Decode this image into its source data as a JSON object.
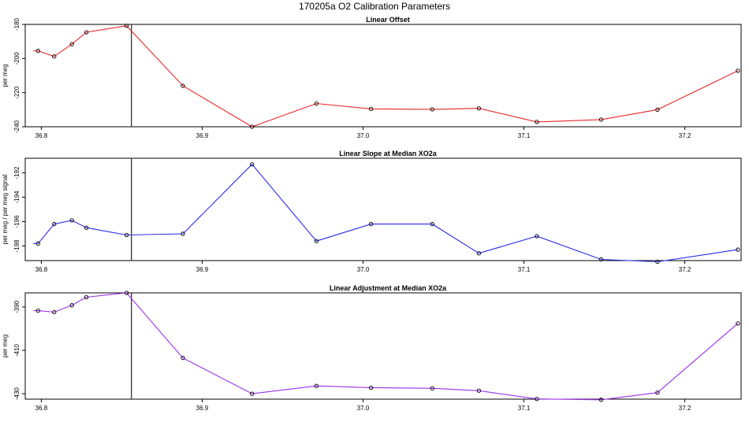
{
  "title": "170205a   O2 Calibration Parameters",
  "chart_data": [
    {
      "type": "line",
      "title": "Linear Offset",
      "ylabel": "per meg",
      "color": "#e8272a",
      "xlim": [
        36.79,
        37.235
      ],
      "ylim": [
        -240,
        -180
      ],
      "xticks": [
        "36.8",
        "36.9",
        "37.0",
        "37.1",
        "37.2"
      ],
      "yticks": [
        "-180",
        "-200",
        "-220",
        "-240"
      ],
      "vline": 36.856,
      "x": [
        36.798,
        36.808,
        36.819,
        36.828,
        36.853,
        36.888,
        36.931,
        36.971,
        37.005,
        37.043,
        37.072,
        37.108,
        37.148,
        37.183,
        37.233
      ],
      "y": [
        -195.5,
        -198.8,
        -191.6,
        -184.6,
        -180.8,
        -216.0,
        -240.0,
        -226.4,
        -229.5,
        -229.8,
        -229.2,
        -237.2,
        -235.8,
        -230.0,
        -207.2
      ]
    },
    {
      "type": "line",
      "title": "Linear Slope at Median XO2a",
      "ylabel": "per meg / per meg signal",
      "color": "#2a2ae8",
      "xlim": [
        36.79,
        37.235
      ],
      "ylim": [
        -199.2,
        -190.8
      ],
      "xticks": [
        "36.8",
        "36.9",
        "37.0",
        "37.1",
        "37.2"
      ],
      "yticks": [
        "-192",
        "-194",
        "-196",
        "-198"
      ],
      "vline": 36.856,
      "x": [
        36.798,
        36.808,
        36.819,
        36.828,
        36.853,
        36.888,
        36.931,
        36.971,
        37.005,
        37.043,
        37.072,
        37.108,
        37.148,
        37.183,
        37.233
      ],
      "y": [
        -197.8,
        -196.2,
        -195.9,
        -196.5,
        -197.1,
        -197.0,
        -191.3,
        -197.6,
        -196.2,
        -196.2,
        -198.6,
        -197.2,
        -199.1,
        -199.3,
        -198.3
      ]
    },
    {
      "type": "line",
      "title": "Linear Adjustment at Median XO2a",
      "ylabel": "per meg",
      "color": "#9b30e8",
      "xlim": [
        36.79,
        37.235
      ],
      "ylim": [
        -432.5,
        -383.5
      ],
      "xticks": [
        "36.8",
        "36.9",
        "37.0",
        "37.1",
        "37.2"
      ],
      "yticks": [
        "-390",
        "-410",
        "-430"
      ],
      "vline": 36.856,
      "x": [
        36.798,
        36.808,
        36.819,
        36.828,
        36.853,
        36.888,
        36.931,
        36.971,
        37.005,
        37.043,
        37.072,
        37.108,
        37.148,
        37.183,
        37.233
      ],
      "y": [
        -391.7,
        -392.4,
        -389.2,
        -385.5,
        -383.5,
        -413.5,
        -430.0,
        -426.4,
        -427.2,
        -427.5,
        -428.6,
        -432.4,
        -432.8,
        -429.5,
        -397.6
      ]
    }
  ]
}
